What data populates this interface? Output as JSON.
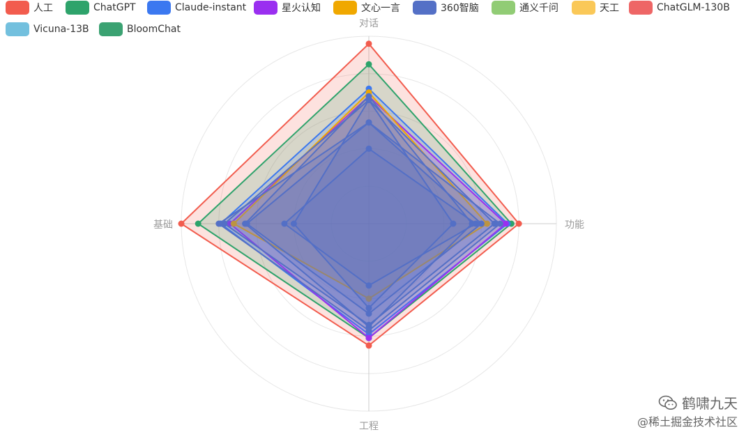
{
  "chart_data": {
    "type": "radar",
    "indicators": [
      "对话",
      "功能",
      "工程",
      "基础"
    ],
    "max": 100,
    "legend_placement": "top-left",
    "series": [
      {
        "name": "人工",
        "color": "#f25c4e",
        "values": [
          96,
          80,
          65,
          100
        ]
      },
      {
        "name": "ChatGPT",
        "color": "#2ea36b",
        "values": [
          85,
          76,
          61,
          91
        ]
      },
      {
        "name": "Claude-instant",
        "color": "#3b78f0",
        "values": [
          72,
          74,
          59,
          79
        ]
      },
      {
        "name": "星火认知",
        "color": "#9a2ff0",
        "values": [
          68,
          73,
          61,
          74
        ]
      },
      {
        "name": "文心一言",
        "color": "#f0a800",
        "values": [
          70,
          63,
          40,
          72
        ]
      },
      {
        "name": "360智脑",
        "color": "#5470c6",
        "values": [
          66,
          67,
          54,
          77
        ]
      },
      {
        "name": "通义千问",
        "color": "#5470c6",
        "values": [
          68,
          55,
          55,
          66
        ]
      },
      {
        "name": "天工",
        "color": "#5470c6",
        "values": [
          54,
          60,
          48,
          65
        ]
      },
      {
        "name": "ChatGLM-130B",
        "color": "#5470c6",
        "values": [
          40,
          57,
          33,
          45
        ]
      },
      {
        "name": "Vicuna-13B",
        "color": "#5470c6",
        "values": [
          66,
          45,
          45,
          40
        ]
      },
      {
        "name": "BloomChat",
        "color": "#5470c6",
        "values": [
          54,
          70,
          57,
          80
        ]
      }
    ],
    "legend": [
      {
        "name": "人工",
        "color": "#f25c4e"
      },
      {
        "name": "ChatGPT",
        "color": "#2ea36b"
      },
      {
        "name": "Claude-instant",
        "color": "#3b78f0"
      },
      {
        "name": "星火认知",
        "color": "#9a2ff0"
      },
      {
        "name": "文心一言",
        "color": "#f0a800"
      },
      {
        "name": "360智脑",
        "color": "#5470c6"
      },
      {
        "name": "通义千问",
        "color": "#91cc75"
      },
      {
        "name": "天工",
        "color": "#fac858"
      },
      {
        "name": "ChatGLM-130B",
        "color": "#ee6666"
      },
      {
        "name": "Vicuna-13B",
        "color": "#73c0de"
      },
      {
        "name": "BloomChat",
        "color": "#3ba272"
      }
    ]
  },
  "watermark": {
    "line1": "鹤啸九天",
    "line2": "@稀土掘金技术社区",
    "icon": "wechat-icon"
  }
}
